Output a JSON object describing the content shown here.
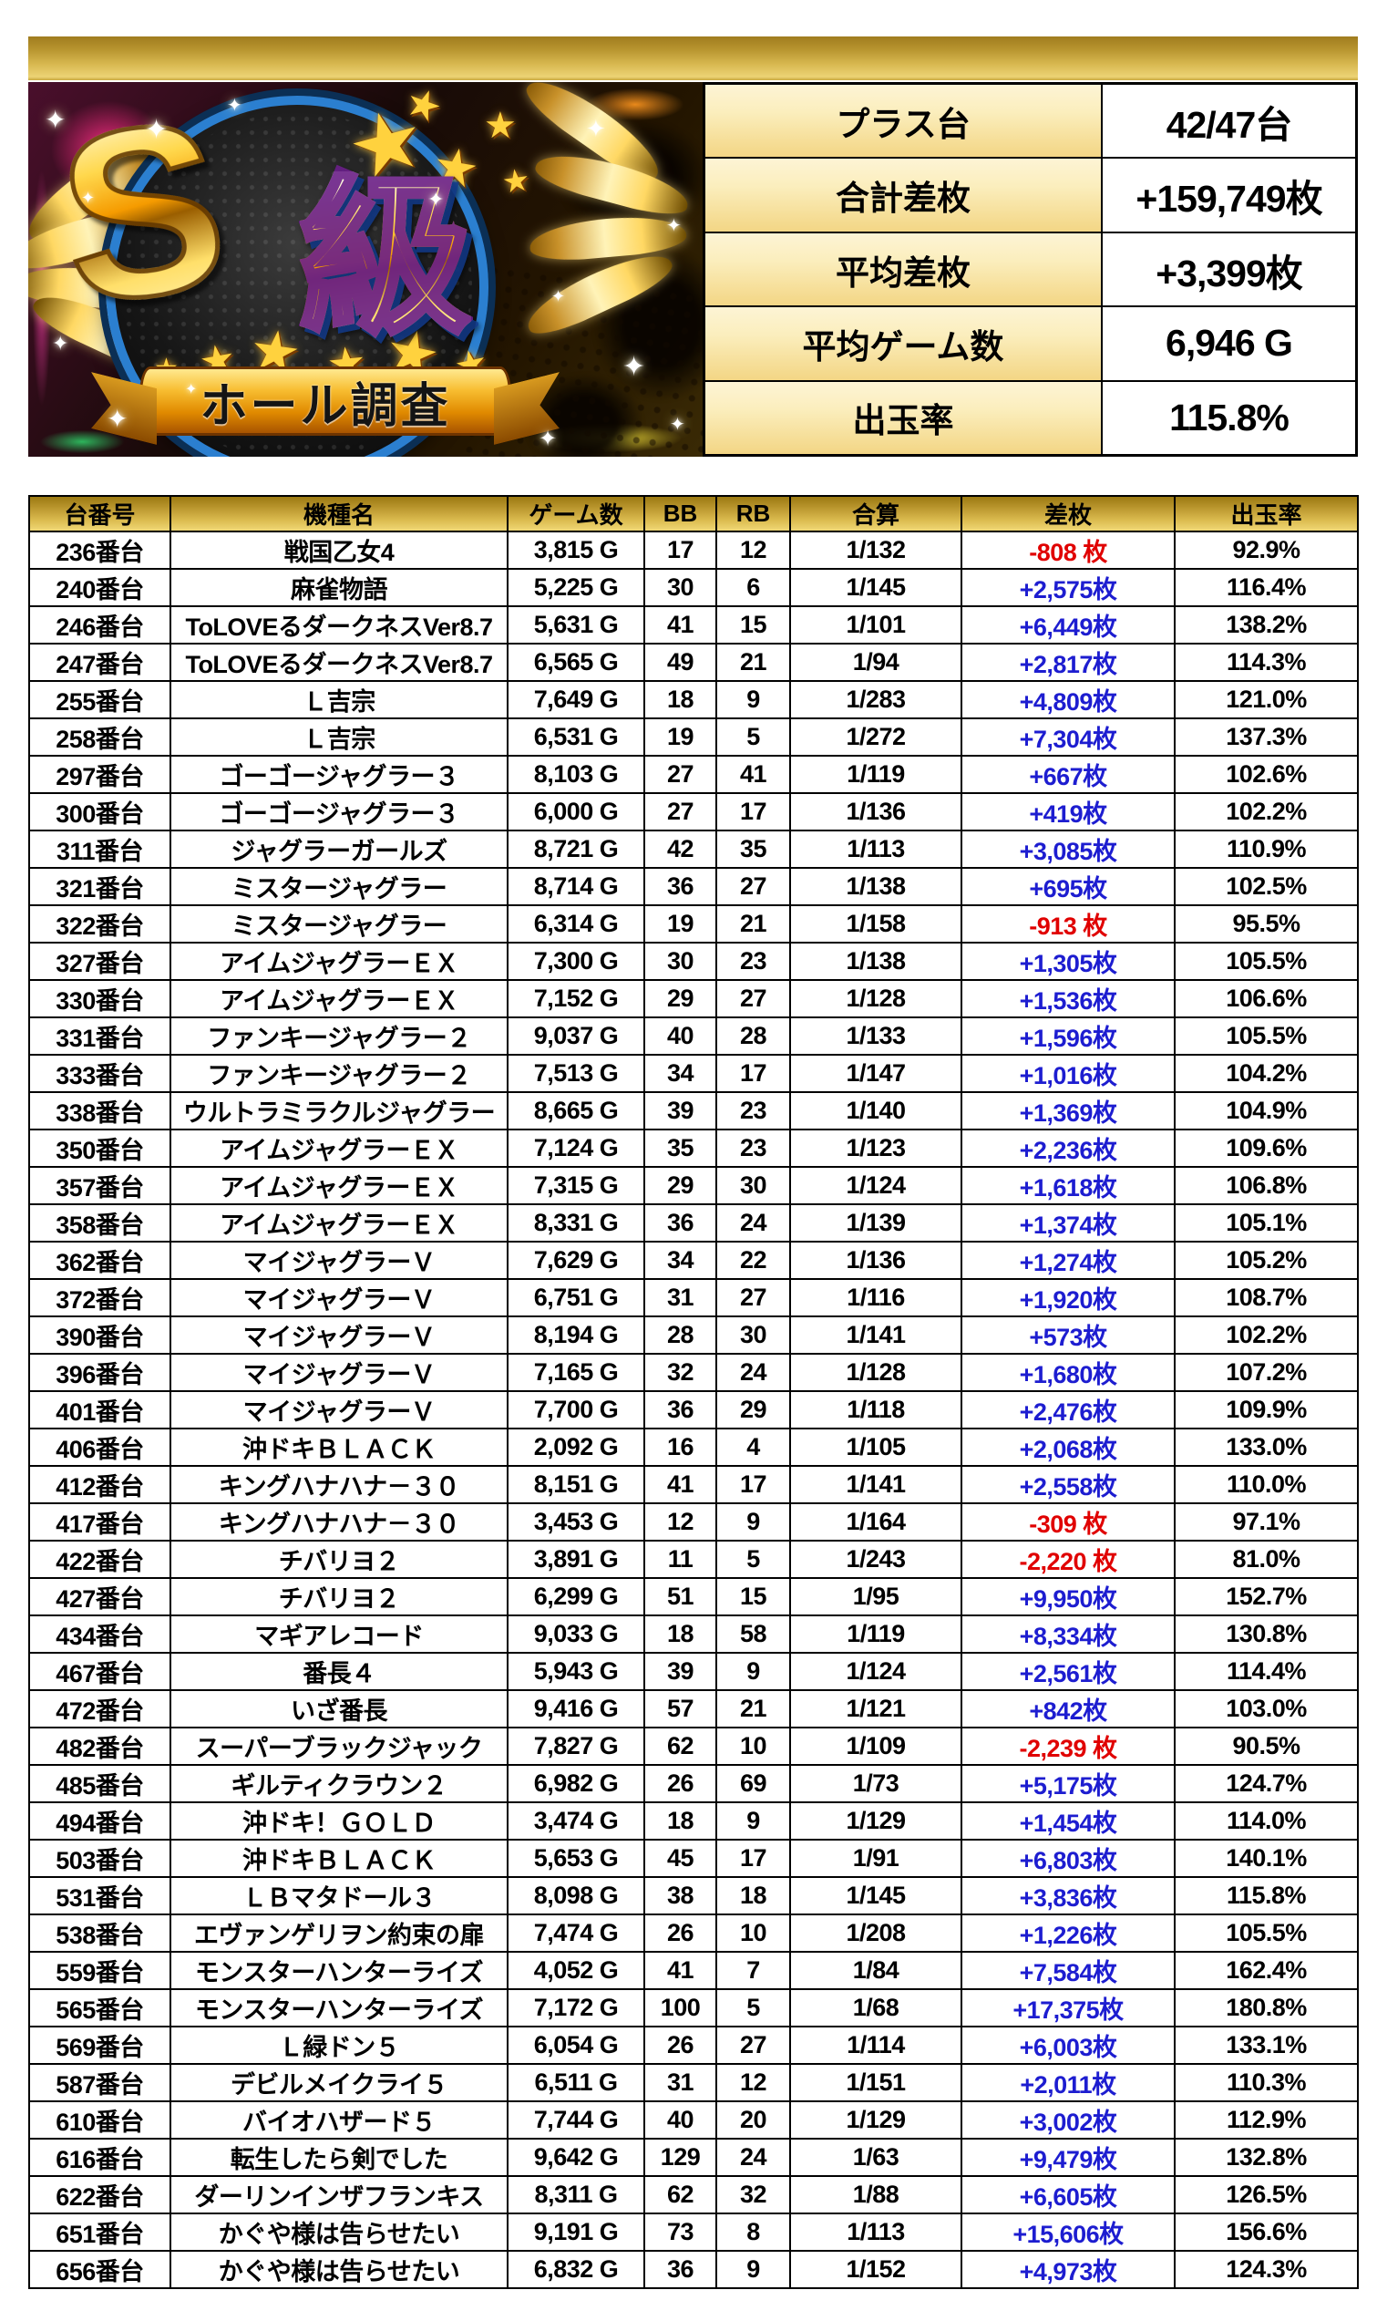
{
  "colors": {
    "positive_diff": "#1d1dd0",
    "negative_diff": "#e00000",
    "header_gold": "#d4af37"
  },
  "icons": {
    "star": "★",
    "sparkle": "✦"
  },
  "hero": {
    "badge_s": "S",
    "badge_kyu": "級",
    "ribbon_label": "ホール調査"
  },
  "summary": {
    "rows": [
      {
        "label": "プラス台",
        "value": "42/47台"
      },
      {
        "label": "合計差枚",
        "value": "+159,749枚"
      },
      {
        "label": "平均差枚",
        "value": "+3,399枚"
      },
      {
        "label": "平均ゲーム数",
        "value": "6,946 G"
      },
      {
        "label": "出玉率",
        "value": "115.8%"
      }
    ]
  },
  "table": {
    "headers": [
      "台番号",
      "機種名",
      "ゲーム数",
      "BB",
      "RB",
      "合算",
      "差枚",
      "出玉率"
    ],
    "rows": [
      {
        "no": "236番台",
        "name": "戦国乙女4",
        "games": "3,815 G",
        "bb": "17",
        "rb": "12",
        "gassan": "1/132",
        "diff": "-808 枚",
        "rate": "92.9%"
      },
      {
        "no": "240番台",
        "name": "麻雀物語",
        "games": "5,225 G",
        "bb": "30",
        "rb": "6",
        "gassan": "1/145",
        "diff": "+2,575枚",
        "rate": "116.4%"
      },
      {
        "no": "246番台",
        "name": "ToLOVEるダークネスVer8.7",
        "games": "5,631 G",
        "bb": "41",
        "rb": "15",
        "gassan": "1/101",
        "diff": "+6,449枚",
        "rate": "138.2%"
      },
      {
        "no": "247番台",
        "name": "ToLOVEるダークネスVer8.7",
        "games": "6,565 G",
        "bb": "49",
        "rb": "21",
        "gassan": "1/94",
        "diff": "+2,817枚",
        "rate": "114.3%"
      },
      {
        "no": "255番台",
        "name": "Ｌ吉宗",
        "games": "7,649 G",
        "bb": "18",
        "rb": "9",
        "gassan": "1/283",
        "diff": "+4,809枚",
        "rate": "121.0%"
      },
      {
        "no": "258番台",
        "name": "Ｌ吉宗",
        "games": "6,531 G",
        "bb": "19",
        "rb": "5",
        "gassan": "1/272",
        "diff": "+7,304枚",
        "rate": "137.3%"
      },
      {
        "no": "297番台",
        "name": "ゴーゴージャグラー３",
        "games": "8,103 G",
        "bb": "27",
        "rb": "41",
        "gassan": "1/119",
        "diff": "+667枚",
        "rate": "102.6%"
      },
      {
        "no": "300番台",
        "name": "ゴーゴージャグラー３",
        "games": "6,000 G",
        "bb": "27",
        "rb": "17",
        "gassan": "1/136",
        "diff": "+419枚",
        "rate": "102.2%"
      },
      {
        "no": "311番台",
        "name": "ジャグラーガールズ",
        "games": "8,721 G",
        "bb": "42",
        "rb": "35",
        "gassan": "1/113",
        "diff": "+3,085枚",
        "rate": "110.9%"
      },
      {
        "no": "321番台",
        "name": "ミスタージャグラー",
        "games": "8,714 G",
        "bb": "36",
        "rb": "27",
        "gassan": "1/138",
        "diff": "+695枚",
        "rate": "102.5%"
      },
      {
        "no": "322番台",
        "name": "ミスタージャグラー",
        "games": "6,314 G",
        "bb": "19",
        "rb": "21",
        "gassan": "1/158",
        "diff": "-913 枚",
        "rate": "95.5%"
      },
      {
        "no": "327番台",
        "name": "アイムジャグラーＥＸ",
        "games": "7,300 G",
        "bb": "30",
        "rb": "23",
        "gassan": "1/138",
        "diff": "+1,305枚",
        "rate": "105.5%"
      },
      {
        "no": "330番台",
        "name": "アイムジャグラーＥＸ",
        "games": "7,152 G",
        "bb": "29",
        "rb": "27",
        "gassan": "1/128",
        "diff": "+1,536枚",
        "rate": "106.6%"
      },
      {
        "no": "331番台",
        "name": "ファンキージャグラー２",
        "games": "9,037 G",
        "bb": "40",
        "rb": "28",
        "gassan": "1/133",
        "diff": "+1,596枚",
        "rate": "105.5%"
      },
      {
        "no": "333番台",
        "name": "ファンキージャグラー２",
        "games": "7,513 G",
        "bb": "34",
        "rb": "17",
        "gassan": "1/147",
        "diff": "+1,016枚",
        "rate": "104.2%"
      },
      {
        "no": "338番台",
        "name": "ウルトラミラクルジャグラー",
        "games": "8,665 G",
        "bb": "39",
        "rb": "23",
        "gassan": "1/140",
        "diff": "+1,369枚",
        "rate": "104.9%"
      },
      {
        "no": "350番台",
        "name": "アイムジャグラーＥＸ",
        "games": "7,124 G",
        "bb": "35",
        "rb": "23",
        "gassan": "1/123",
        "diff": "+2,236枚",
        "rate": "109.6%"
      },
      {
        "no": "357番台",
        "name": "アイムジャグラーＥＸ",
        "games": "7,315 G",
        "bb": "29",
        "rb": "30",
        "gassan": "1/124",
        "diff": "+1,618枚",
        "rate": "106.8%"
      },
      {
        "no": "358番台",
        "name": "アイムジャグラーＥＸ",
        "games": "8,331 G",
        "bb": "36",
        "rb": "24",
        "gassan": "1/139",
        "diff": "+1,374枚",
        "rate": "105.1%"
      },
      {
        "no": "362番台",
        "name": "マイジャグラーＶ",
        "games": "7,629 G",
        "bb": "34",
        "rb": "22",
        "gassan": "1/136",
        "diff": "+1,274枚",
        "rate": "105.2%"
      },
      {
        "no": "372番台",
        "name": "マイジャグラーＶ",
        "games": "6,751 G",
        "bb": "31",
        "rb": "27",
        "gassan": "1/116",
        "diff": "+1,920枚",
        "rate": "108.7%"
      },
      {
        "no": "390番台",
        "name": "マイジャグラーＶ",
        "games": "8,194 G",
        "bb": "28",
        "rb": "30",
        "gassan": "1/141",
        "diff": "+573枚",
        "rate": "102.2%"
      },
      {
        "no": "396番台",
        "name": "マイジャグラーＶ",
        "games": "7,165 G",
        "bb": "32",
        "rb": "24",
        "gassan": "1/128",
        "diff": "+1,680枚",
        "rate": "107.2%"
      },
      {
        "no": "401番台",
        "name": "マイジャグラーＶ",
        "games": "7,700 G",
        "bb": "36",
        "rb": "29",
        "gassan": "1/118",
        "diff": "+2,476枚",
        "rate": "109.9%"
      },
      {
        "no": "406番台",
        "name": "沖ドキＢＬＡＣＫ",
        "games": "2,092 G",
        "bb": "16",
        "rb": "4",
        "gassan": "1/105",
        "diff": "+2,068枚",
        "rate": "133.0%"
      },
      {
        "no": "412番台",
        "name": "キングハナハナ－３０",
        "games": "8,151 G",
        "bb": "41",
        "rb": "17",
        "gassan": "1/141",
        "diff": "+2,558枚",
        "rate": "110.0%"
      },
      {
        "no": "417番台",
        "name": "キングハナハナ－３０",
        "games": "3,453 G",
        "bb": "12",
        "rb": "9",
        "gassan": "1/164",
        "diff": "-309 枚",
        "rate": "97.1%"
      },
      {
        "no": "422番台",
        "name": "チバリヨ２",
        "games": "3,891 G",
        "bb": "11",
        "rb": "5",
        "gassan": "1/243",
        "diff": "-2,220 枚",
        "rate": "81.0%"
      },
      {
        "no": "427番台",
        "name": "チバリヨ２",
        "games": "6,299 G",
        "bb": "51",
        "rb": "15",
        "gassan": "1/95",
        "diff": "+9,950枚",
        "rate": "152.7%"
      },
      {
        "no": "434番台",
        "name": "マギアレコード",
        "games": "9,033 G",
        "bb": "18",
        "rb": "58",
        "gassan": "1/119",
        "diff": "+8,334枚",
        "rate": "130.8%"
      },
      {
        "no": "467番台",
        "name": "番長４",
        "games": "5,943 G",
        "bb": "39",
        "rb": "9",
        "gassan": "1/124",
        "diff": "+2,561枚",
        "rate": "114.4%"
      },
      {
        "no": "472番台",
        "name": "いざ番長",
        "games": "9,416 G",
        "bb": "57",
        "rb": "21",
        "gassan": "1/121",
        "diff": "+842枚",
        "rate": "103.0%"
      },
      {
        "no": "482番台",
        "name": "スーパーブラックジャック",
        "games": "7,827 G",
        "bb": "62",
        "rb": "10",
        "gassan": "1/109",
        "diff": "-2,239 枚",
        "rate": "90.5%"
      },
      {
        "no": "485番台",
        "name": "ギルティクラウン２",
        "games": "6,982 G",
        "bb": "26",
        "rb": "69",
        "gassan": "1/73",
        "diff": "+5,175枚",
        "rate": "124.7%"
      },
      {
        "no": "494番台",
        "name": "沖ドキ！ＧＯＬＤ",
        "games": "3,474 G",
        "bb": "18",
        "rb": "9",
        "gassan": "1/129",
        "diff": "+1,454枚",
        "rate": "114.0%"
      },
      {
        "no": "503番台",
        "name": "沖ドキＢＬＡＣＫ",
        "games": "5,653 G",
        "bb": "45",
        "rb": "17",
        "gassan": "1/91",
        "diff": "+6,803枚",
        "rate": "140.1%"
      },
      {
        "no": "531番台",
        "name": "ＬＢマタドール３",
        "games": "8,098 G",
        "bb": "38",
        "rb": "18",
        "gassan": "1/145",
        "diff": "+3,836枚",
        "rate": "115.8%"
      },
      {
        "no": "538番台",
        "name": "エヴァンゲリヲン約束の扉",
        "games": "7,474 G",
        "bb": "26",
        "rb": "10",
        "gassan": "1/208",
        "diff": "+1,226枚",
        "rate": "105.5%"
      },
      {
        "no": "559番台",
        "name": "モンスターハンターライズ",
        "games": "4,052 G",
        "bb": "41",
        "rb": "7",
        "gassan": "1/84",
        "diff": "+7,584枚",
        "rate": "162.4%"
      },
      {
        "no": "565番台",
        "name": "モンスターハンターライズ",
        "games": "7,172 G",
        "bb": "100",
        "rb": "5",
        "gassan": "1/68",
        "diff": "+17,375枚",
        "rate": "180.8%"
      },
      {
        "no": "569番台",
        "name": "Ｌ緑ドン５",
        "games": "6,054 G",
        "bb": "26",
        "rb": "27",
        "gassan": "1/114",
        "diff": "+6,003枚",
        "rate": "133.1%"
      },
      {
        "no": "587番台",
        "name": "デビルメイクライ５",
        "games": "6,511 G",
        "bb": "31",
        "rb": "12",
        "gassan": "1/151",
        "diff": "+2,011枚",
        "rate": "110.3%"
      },
      {
        "no": "610番台",
        "name": "バイオハザード５",
        "games": "7,744 G",
        "bb": "40",
        "rb": "20",
        "gassan": "1/129",
        "diff": "+3,002枚",
        "rate": "112.9%"
      },
      {
        "no": "616番台",
        "name": "転生したら剣でした",
        "games": "9,642 G",
        "bb": "129",
        "rb": "24",
        "gassan": "1/63",
        "diff": "+9,479枚",
        "rate": "132.8%"
      },
      {
        "no": "622番台",
        "name": "ダーリンインザフランキス",
        "games": "8,311 G",
        "bb": "62",
        "rb": "32",
        "gassan": "1/88",
        "diff": "+6,605枚",
        "rate": "126.5%"
      },
      {
        "no": "651番台",
        "name": "かぐや様は告らせたい",
        "games": "9,191 G",
        "bb": "73",
        "rb": "8",
        "gassan": "1/113",
        "diff": "+15,606枚",
        "rate": "156.6%"
      },
      {
        "no": "656番台",
        "name": "かぐや様は告らせたい",
        "games": "6,832 G",
        "bb": "36",
        "rb": "9",
        "gassan": "1/152",
        "diff": "+4,973枚",
        "rate": "124.3%"
      }
    ]
  }
}
